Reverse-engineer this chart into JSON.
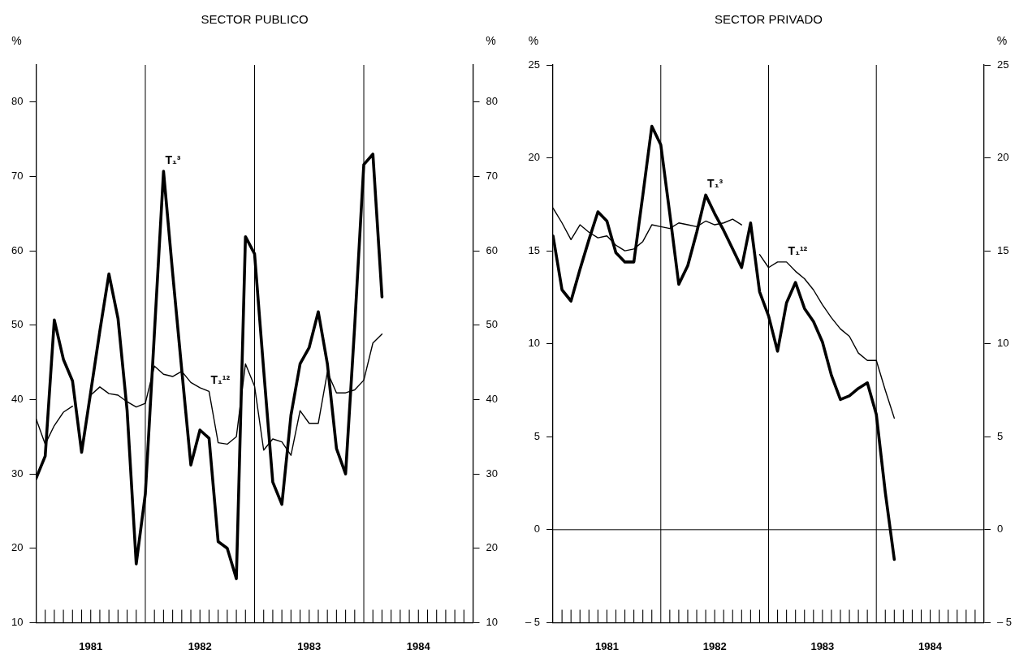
{
  "chart_data": [
    {
      "type": "line",
      "title": "SECTOR PUBLICO",
      "ylabel": "%",
      "y2label": "%",
      "x": [
        "1981-01",
        "1981-02",
        "1981-03",
        "1981-04",
        "1981-05",
        "1981-06",
        "1981-07",
        "1981-08",
        "1981-09",
        "1981-10",
        "1981-11",
        "1981-12",
        "1982-01",
        "1982-02",
        "1982-03",
        "1982-04",
        "1982-05",
        "1982-06",
        "1982-07",
        "1982-08",
        "1982-09",
        "1982-10",
        "1982-11",
        "1982-12",
        "1983-01",
        "1983-02",
        "1983-03",
        "1983-04",
        "1983-05",
        "1983-06",
        "1983-07",
        "1983-08",
        "1983-09",
        "1983-10",
        "1983-11",
        "1983-12",
        "1984-01",
        "1984-02",
        "1984-03"
      ],
      "series": [
        {
          "color": "#000000",
          "values": [
            29.4,
            32.4,
            50.7,
            45.4,
            42.5,
            32.9,
            41,
            49.2,
            56.9,
            50.9,
            38.5,
            17.9,
            27.3,
            49,
            70.7,
            57,
            44,
            31.2,
            35.9,
            34.8,
            20.9,
            20.0,
            15.9,
            61.9,
            59.6,
            44,
            28.9,
            25.9,
            37.9,
            44.8,
            47.0,
            51.8,
            44.8,
            33.4,
            30.0,
            49.9,
            71.6,
            73.0,
            53.8
          ]
        },
        {
          "color": "#000000",
          "values": [
            37.4,
            34.0,
            36.5,
            38.3,
            39.1,
            null,
            40.6,
            41.7,
            40.8,
            40.6,
            39.7,
            39.0,
            39.5,
            44.5,
            43.4,
            43.1,
            43.8,
            42.3,
            41.6,
            41.1,
            34.2,
            34.0,
            35.0,
            44.8,
            41.8,
            33.2,
            34.7,
            34.3,
            32.5,
            38.5,
            36.8,
            36.8,
            43.7,
            40.9,
            40.9,
            41.3,
            42.6,
            47.6,
            48.8
          ]
        }
      ],
      "xlim": [
        "1981-01-01",
        "1985-01-01"
      ],
      "xticks": [
        {
          "value": "1981-02-01",
          "label": null
        },
        {
          "value": "1981-03-01",
          "label": null
        },
        {
          "value": "1981-04-01",
          "label": null
        },
        {
          "value": "1981-05-01",
          "label": null
        },
        {
          "value": "1981-06-01",
          "label": null
        },
        {
          "value": "1981-07-01",
          "label": "1981"
        },
        {
          "value": "1981-08-01",
          "label": null
        },
        {
          "value": "1981-09-01",
          "label": null
        },
        {
          "value": "1981-10-01",
          "label": null
        },
        {
          "value": "1981-11-01",
          "label": null
        },
        {
          "value": "1981-12-01",
          "label": null
        },
        {
          "value": "1982-02-01",
          "label": null
        },
        {
          "value": "1982-03-01",
          "label": null
        },
        {
          "value": "1982-04-01",
          "label": null
        },
        {
          "value": "1982-05-01",
          "label": null
        },
        {
          "value": "1982-06-01",
          "label": null
        },
        {
          "value": "1982-07-01",
          "label": "1982"
        },
        {
          "value": "1982-08-01",
          "label": null
        },
        {
          "value": "1982-09-01",
          "label": null
        },
        {
          "value": "1982-10-01",
          "label": null
        },
        {
          "value": "1982-11-01",
          "label": null
        },
        {
          "value": "1982-12-01",
          "label": null
        },
        {
          "value": "1983-02-01",
          "label": null
        },
        {
          "value": "1983-03-01",
          "label": null
        },
        {
          "value": "1983-04-01",
          "label": null
        },
        {
          "value": "1983-05-01",
          "label": null
        },
        {
          "value": "1983-06-01",
          "label": null
        },
        {
          "value": "1983-07-01",
          "label": "1983"
        },
        {
          "value": "1983-08-01",
          "label": null
        },
        {
          "value": "1983-09-01",
          "label": null
        },
        {
          "value": "1983-10-01",
          "label": null
        },
        {
          "value": "1983-11-01",
          "label": null
        },
        {
          "value": "1983-12-01",
          "label": null
        },
        {
          "value": "1984-02-01",
          "label": null
        },
        {
          "value": "1984-03-01",
          "label": null
        },
        {
          "value": "1984-04-01",
          "label": null
        },
        {
          "value": "1984-05-01",
          "label": null
        },
        {
          "value": "1984-06-01",
          "label": null
        },
        {
          "value": "1984-07-01",
          "label": "1984"
        },
        {
          "value": "1984-08-01",
          "label": null
        },
        {
          "value": "1984-09-01",
          "label": null
        },
        {
          "value": "1984-10-01",
          "label": null
        },
        {
          "value": "1984-11-01",
          "label": null
        },
        {
          "value": "1984-12-01",
          "label": null
        }
      ],
      "ylim": [
        10,
        85
      ],
      "yticks": [
        10,
        20,
        30,
        40,
        50,
        60,
        70,
        80
      ],
      "y2lim": [
        10,
        85
      ],
      "y2ticks": [
        10,
        20,
        30,
        40,
        50,
        60,
        70,
        80
      ],
      "ref_lines": [
        {
          "axis": "x",
          "value": "1982-01-01"
        },
        {
          "axis": "x",
          "value": "1983-01-01"
        },
        {
          "axis": "x",
          "value": "1984-01-01"
        }
      ],
      "annotations": [
        {
          "text": "T₁³",
          "x": "1982-03",
          "y": 70.7
        },
        {
          "text": "T₁¹²",
          "x": "1982-08",
          "y": 41.1
        }
      ],
      "grid": false,
      "legend": false,
      "marker": "none",
      "line_style": "solid"
    },
    {
      "type": "line",
      "title": "SECTOR PRIVADO",
      "ylabel": "%",
      "y2label": "%",
      "x": [
        "1981-01",
        "1981-02",
        "1981-03",
        "1981-04",
        "1981-05",
        "1981-06",
        "1981-07",
        "1981-08",
        "1981-09",
        "1981-10",
        "1981-11",
        "1981-12",
        "1982-01",
        "1982-02",
        "1982-03",
        "1982-04",
        "1982-05",
        "1982-06",
        "1982-07",
        "1982-08",
        "1982-09",
        "1982-10",
        "1982-11",
        "1982-12",
        "1983-01",
        "1983-02",
        "1983-03",
        "1983-04",
        "1983-05",
        "1983-06",
        "1983-07",
        "1983-08",
        "1983-09",
        "1983-10",
        "1983-11",
        "1983-12",
        "1984-01",
        "1984-02",
        "1984-03"
      ],
      "series": [
        {
          "color": "#000000",
          "values": [
            15.8,
            12.9,
            12.3,
            14.0,
            15.6,
            17.1,
            16.6,
            14.9,
            14.4,
            14.4,
            18.0,
            21.7,
            20.7,
            17.0,
            13.2,
            14.2,
            16.0,
            18.0,
            17.0,
            16.1,
            15.1,
            14.1,
            16.5,
            12.8,
            11.5,
            9.6,
            12.2,
            13.3,
            11.9,
            11.2,
            10.1,
            8.3,
            7.0,
            7.2,
            7.6,
            7.9,
            6.2,
            2.0,
            -1.6
          ]
        },
        {
          "color": "#000000",
          "values": [
            17.3,
            16.5,
            15.6,
            16.4,
            16.0,
            15.7,
            15.8,
            15.3,
            15.0,
            15.1,
            15.5,
            16.4,
            16.3,
            16.2,
            16.5,
            16.4,
            16.3,
            16.6,
            16.4,
            16.5,
            16.7,
            16.4,
            null,
            14.8,
            14.1,
            14.4,
            14.4,
            13.9,
            13.5,
            12.9,
            12.1,
            11.4,
            10.8,
            10.4,
            9.5,
            9.1,
            9.1,
            7.5,
            6.0
          ]
        }
      ],
      "xlim": [
        "1981-01-01",
        "1985-01-01"
      ],
      "xticks": [
        {
          "value": "1981-02-01",
          "label": null
        },
        {
          "value": "1981-03-01",
          "label": null
        },
        {
          "value": "1981-04-01",
          "label": null
        },
        {
          "value": "1981-05-01",
          "label": null
        },
        {
          "value": "1981-06-01",
          "label": null
        },
        {
          "value": "1981-07-01",
          "label": "1981"
        },
        {
          "value": "1981-08-01",
          "label": null
        },
        {
          "value": "1981-09-01",
          "label": null
        },
        {
          "value": "1981-10-01",
          "label": null
        },
        {
          "value": "1981-11-01",
          "label": null
        },
        {
          "value": "1981-12-01",
          "label": null
        },
        {
          "value": "1982-02-01",
          "label": null
        },
        {
          "value": "1982-03-01",
          "label": null
        },
        {
          "value": "1982-04-01",
          "label": null
        },
        {
          "value": "1982-05-01",
          "label": null
        },
        {
          "value": "1982-06-01",
          "label": null
        },
        {
          "value": "1982-07-01",
          "label": "1982"
        },
        {
          "value": "1982-08-01",
          "label": null
        },
        {
          "value": "1982-09-01",
          "label": null
        },
        {
          "value": "1982-10-01",
          "label": null
        },
        {
          "value": "1982-11-01",
          "label": null
        },
        {
          "value": "1982-12-01",
          "label": null
        },
        {
          "value": "1983-02-01",
          "label": null
        },
        {
          "value": "1983-03-01",
          "label": null
        },
        {
          "value": "1983-04-01",
          "label": null
        },
        {
          "value": "1983-05-01",
          "label": null
        },
        {
          "value": "1983-06-01",
          "label": null
        },
        {
          "value": "1983-07-01",
          "label": "1983"
        },
        {
          "value": "1983-08-01",
          "label": null
        },
        {
          "value": "1983-09-01",
          "label": null
        },
        {
          "value": "1983-10-01",
          "label": null
        },
        {
          "value": "1983-11-01",
          "label": null
        },
        {
          "value": "1983-12-01",
          "label": null
        },
        {
          "value": "1984-02-01",
          "label": null
        },
        {
          "value": "1984-03-01",
          "label": null
        },
        {
          "value": "1984-04-01",
          "label": null
        },
        {
          "value": "1984-05-01",
          "label": null
        },
        {
          "value": "1984-06-01",
          "label": null
        },
        {
          "value": "1984-07-01",
          "label": "1984"
        },
        {
          "value": "1984-08-01",
          "label": null
        },
        {
          "value": "1984-09-01",
          "label": null
        },
        {
          "value": "1984-10-01",
          "label": null
        },
        {
          "value": "1984-11-01",
          "label": null
        },
        {
          "value": "1984-12-01",
          "label": null
        }
      ],
      "ylim": [
        -5,
        25
      ],
      "yticks": [
        {
          "value": -5,
          "label": "– 5"
        },
        0,
        5,
        10,
        15,
        20,
        25
      ],
      "y2lim": [
        -5,
        25
      ],
      "y2ticks": [
        {
          "value": -5,
          "label": "– 5"
        },
        0,
        5,
        10,
        15,
        20,
        25
      ],
      "ref_lines": [
        {
          "axis": "x",
          "value": "1982-01-01"
        },
        {
          "axis": "x",
          "value": "1983-01-01"
        },
        {
          "axis": "x",
          "value": "1984-01-01"
        },
        {
          "axis": "y",
          "value": 0
        }
      ],
      "annotations": [
        {
          "text": "T₁³",
          "x": "1982-06",
          "y": 18.0
        },
        {
          "text": "T₁¹²",
          "x": "1983-03",
          "y": 14.4
        }
      ],
      "grid": false,
      "legend": false,
      "marker": "none",
      "line_style": "solid"
    }
  ]
}
